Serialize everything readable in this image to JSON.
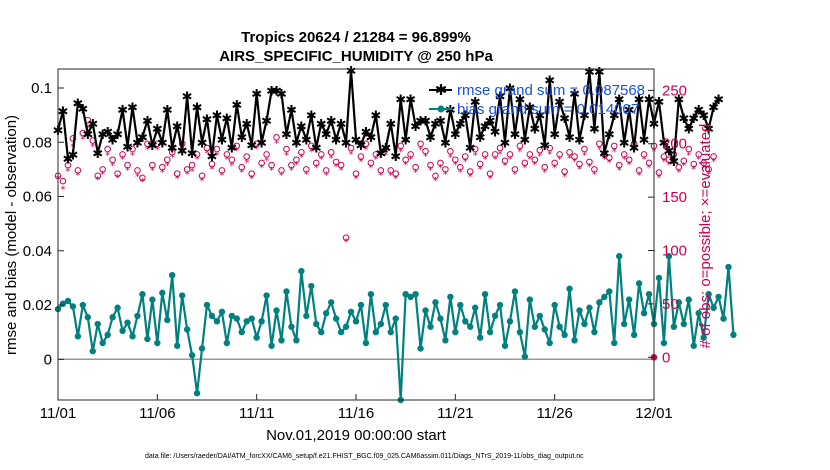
{
  "chart_data": {
    "type": "line",
    "title_line1": "Tropics 20624 / 21284 = 96.899%",
    "title_line2": "AIRS_SPECIFIC_HUMIDITY @ 250 hPa",
    "xlabel": "Nov.01,2019 00:00:00 start",
    "ylabel_left": "rmse and bias (model - observation)",
    "ylabel_right": "# of obs: o=possible; ×=evaluated",
    "footer": "data file: /Users/raeder/DAI/ATM_forcXX/CAM6_setup/f.e21.FHIST_BGC.f09_025.CAM6assim.011/Diags_NTrS_2019-11/obs_diag_output.nc",
    "x_tick_labels": [
      "11/01",
      "11/06",
      "11/11",
      "11/16",
      "11/21",
      "11/26",
      "12/01"
    ],
    "x_tick_days": [
      0,
      5,
      10,
      15,
      20,
      25,
      30
    ],
    "xlim": [
      0,
      30
    ],
    "ylim_left": [
      -0.015,
      0.107
    ],
    "y_left_ticks": [
      0,
      0.02,
      0.04,
      0.06,
      0.08,
      0.1
    ],
    "y_left_tick_labels": [
      "0",
      "0.02",
      "0.04",
      "0.06",
      "0.08",
      "0.1"
    ],
    "ylim_right": [
      -40,
      270
    ],
    "y_right_ticks": [
      0,
      50,
      100,
      150,
      200,
      250
    ],
    "y_right_tick_labels": [
      "0",
      "50",
      "100",
      "150",
      "200",
      "250"
    ],
    "legend": [
      {
        "name": "rmse grand sum = 0.087568",
        "color": "#000000",
        "marker": "star"
      },
      {
        "name": "bias grand sum = 0.014007",
        "color": "#00807f",
        "marker": "circle"
      }
    ],
    "colors": {
      "rmse": "#000000",
      "bias": "#00807f",
      "obs": "#cc0055",
      "zero_line": "#999999"
    },
    "time_step_days": 0.25,
    "rmse": [
      0.0845,
      0.0915,
      0.074,
      0.0755,
      0.0945,
      0.0925,
      0.083,
      0.087,
      0.076,
      0.083,
      0.084,
      0.081,
      0.083,
      0.092,
      0.0785,
      0.093,
      0.08,
      0.082,
      0.088,
      0.079,
      0.085,
      0.08,
      0.092,
      0.078,
      0.086,
      0.077,
      0.097,
      0.076,
      0.093,
      0.08,
      0.0885,
      0.075,
      0.09,
      0.081,
      0.089,
      0.078,
      0.094,
      0.082,
      0.087,
      0.079,
      0.098,
      0.08,
      0.088,
      0.099,
      0.099,
      0.098,
      0.083,
      0.092,
      0.08,
      0.086,
      0.081,
      0.09,
      0.078,
      0.087,
      0.083,
      0.088,
      0.081,
      0.087,
      0.08,
      0.1065,
      0.081,
      0.079,
      0.084,
      0.082,
      0.09,
      0.076,
      0.078,
      0.087,
      0.075,
      0.096,
      0.081,
      0.096,
      0.086,
      0.088,
      0.088,
      0.082,
      0.087,
      0.088,
      0.08,
      0.092,
      0.083,
      0.087,
      0.09,
      0.078,
      0.095,
      0.082,
      0.086,
      0.088,
      0.084,
      0.097,
      0.08,
      0.1,
      0.083,
      0.096,
      0.081,
      0.093,
      0.085,
      0.09,
      0.079,
      0.103,
      0.083,
      0.095,
      0.089,
      0.082,
      0.098,
      0.081,
      0.09,
      0.106,
      0.085,
      0.106,
      0.076,
      0.083,
      0.09,
      0.096,
      0.08,
      0.092,
      0.078,
      0.096,
      0.081,
      0.096,
      0.087,
      0.095,
      0.08,
      0.077,
      0.073,
      0.096,
      0.089,
      0.085,
      0.089,
      0.092,
      0.09,
      0.085,
      0.093,
      0.096
    ],
    "bias": [
      0.0185,
      0.0205,
      0.0215,
      0.0195,
      0.0085,
      0.02,
      0.0155,
      0.003,
      0.013,
      0.006,
      0.009,
      0.0155,
      0.019,
      0.0105,
      0.0135,
      0.0085,
      0.016,
      0.024,
      0.0075,
      0.022,
      0.006,
      0.0245,
      0.0145,
      0.031,
      0.005,
      0.0235,
      0.011,
      0.0015,
      -0.0125,
      0.004,
      0.02,
      0.016,
      0.014,
      0.0175,
      0.006,
      0.016,
      0.015,
      0.01,
      0.014,
      0.015,
      0.008,
      0.014,
      0.0235,
      0.005,
      0.018,
      0.007,
      0.025,
      0.012,
      0.007,
      0.0325,
      0.016,
      0.027,
      0.013,
      0.01,
      0.017,
      0.021,
      0.015,
      0.01,
      0.012,
      0.0175,
      0.014,
      0.02,
      0.006,
      0.024,
      0.01,
      0.013,
      0.02,
      0.01,
      0.015,
      -0.015,
      0.024,
      0.023,
      0.024,
      0.004,
      0.018,
      0.012,
      0.021,
      0.015,
      0.007,
      0.023,
      0.01,
      0.02,
      0.014,
      0.012,
      0.019,
      0.008,
      0.024,
      0.01,
      0.016,
      0.02,
      0.005,
      0.014,
      0.025,
      0.01,
      0.001,
      0.022,
      0.012,
      0.016,
      0.011,
      0.006,
      0.02,
      0.012,
      0.009,
      0.026,
      0.007,
      0.018,
      0.013,
      0.019,
      0.01,
      0.021,
      0.023,
      0.025,
      0.006,
      0.038,
      0.013,
      0.022,
      0.009,
      0.028,
      0.017,
      0.024,
      0.013,
      0.03,
      0.006,
      0.038,
      0.012,
      0.021,
      0.013,
      0.022,
      0.005,
      0.017,
      0.008,
      0.024,
      0.019,
      0.023,
      0.015,
      0.034,
      0.009
    ],
    "obs_possible": [
      170,
      165,
      180,
      205,
      175,
      210,
      222,
      203,
      170,
      176,
      195,
      185,
      172,
      190,
      180,
      195,
      175,
      168,
      200,
      180,
      200,
      178,
      185,
      192,
      172,
      200,
      176,
      180,
      190,
      170,
      196,
      181,
      195,
      175,
      190,
      185,
      198,
      178,
      188,
      172,
      200,
      182,
      190,
      180,
      206,
      175,
      195,
      180,
      185,
      192,
      176,
      198,
      182,
      190,
      175,
      192,
      183,
      180,
      112,
      196,
      172,
      188,
      200,
      182,
      190,
      175,
      195,
      175,
      172,
      198,
      185,
      190,
      178,
      200,
      193,
      180,
      170,
      182,
      176,
      193,
      185,
      178,
      188,
      174,
      195,
      181,
      190,
      172,
      190,
      196,
      184,
      190,
      176,
      198,
      182,
      190,
      185,
      194,
      178,
      196,
      182,
      190,
      174,
      192,
      188,
      181,
      195,
      183,
      176,
      200,
      190,
      187,
      198,
      180,
      190,
      185,
      200,
      175,
      190,
      182,
      198,
      173,
      188,
      185,
      190,
      178,
      184,
      195,
      181,
      190,
      182,
      176,
      188
    ],
    "obs_evaluated": [
      168,
      158,
      175,
      198,
      171,
      205,
      215,
      198,
      167,
      172,
      190,
      180,
      169,
      186,
      176,
      190,
      170,
      165,
      195,
      176,
      195,
      174,
      180,
      188,
      168,
      196,
      172,
      175,
      186,
      166,
      192,
      177,
      190,
      171,
      186,
      180,
      194,
      174,
      183,
      168,
      196,
      178,
      185,
      176,
      201,
      171,
      190,
      176,
      181,
      188,
      172,
      193,
      178,
      186,
      171,
      187,
      179,
      176,
      109,
      191,
      168,
      184,
      195,
      178,
      186,
      171,
      190,
      171,
      168,
      193,
      181,
      186,
      174,
      195,
      189,
      176,
      166,
      178,
      172,
      188,
      181,
      174,
      184,
      170,
      190,
      177,
      186,
      168,
      186,
      191,
      180,
      186,
      172,
      193,
      178,
      186,
      181,
      189,
      174,
      191,
      178,
      186,
      170,
      187,
      184,
      177,
      190,
      179,
      172,
      195,
      186,
      183,
      193,
      176,
      186,
      181,
      195,
      171,
      186,
      178,
      193,
      169,
      184,
      181,
      186,
      174,
      180,
      190,
      177,
      186,
      178,
      172,
      184
    ]
  }
}
